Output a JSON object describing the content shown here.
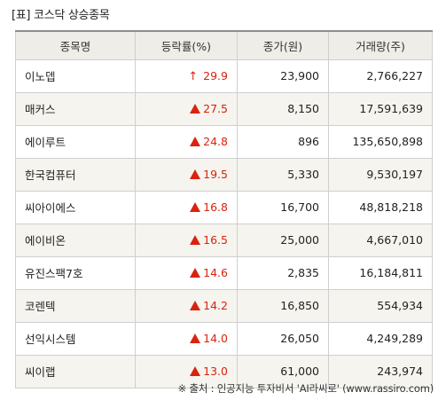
{
  "title": "[표] 코스닥 상승종목",
  "headers": [
    "종목명",
    "등락률(%)",
    "종가(원)",
    "거래량(주)"
  ],
  "rows": [
    {
      "name": "이노뎁",
      "rate": "29.9",
      "marker": "up-arrow",
      "close": "23,900",
      "volume": "2,766,227"
    },
    {
      "name": "매커스",
      "rate": "27.5",
      "marker": "triangle",
      "close": "8,150",
      "volume": "17,591,639"
    },
    {
      "name": "에이루트",
      "rate": "24.8",
      "marker": "triangle",
      "close": "896",
      "volume": "135,650,898"
    },
    {
      "name": "한국컴퓨터",
      "rate": "19.5",
      "marker": "triangle",
      "close": "5,330",
      "volume": "9,530,197"
    },
    {
      "name": "씨아이에스",
      "rate": "16.8",
      "marker": "triangle",
      "close": "16,700",
      "volume": "48,818,218"
    },
    {
      "name": "에이비온",
      "rate": "16.5",
      "marker": "triangle",
      "close": "25,000",
      "volume": "4,667,010"
    },
    {
      "name": "유진스팩7호",
      "rate": "14.6",
      "marker": "triangle",
      "close": "2,835",
      "volume": "16,184,811"
    },
    {
      "name": "코렌텍",
      "rate": "14.2",
      "marker": "triangle",
      "close": "16,850",
      "volume": "554,934"
    },
    {
      "name": "선익시스템",
      "rate": "14.0",
      "marker": "triangle",
      "close": "26,050",
      "volume": "4,249,289"
    },
    {
      "name": "씨이랩",
      "rate": "13.0",
      "marker": "triangle",
      "close": "61,000",
      "volume": "243,974"
    }
  ],
  "source": "※ 출처 : 인공지능 투자비서 'AI라씨로' (www.rassiro.com)",
  "colors": {
    "up": "#d9230f",
    "header_bg": "#efede7",
    "alt_row_bg": "#f5f4ef"
  }
}
